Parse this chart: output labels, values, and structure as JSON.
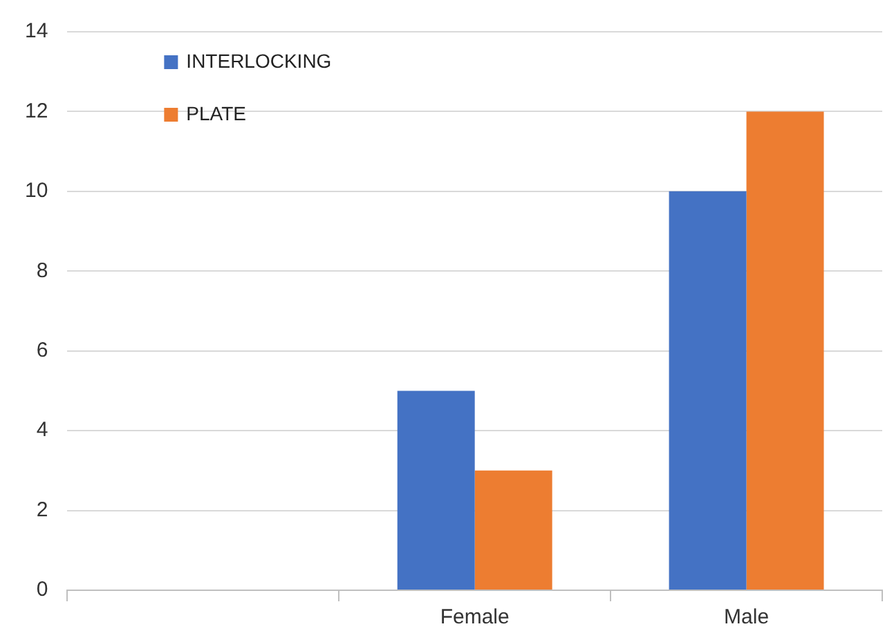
{
  "chart_data": {
    "type": "bar",
    "categories": [
      null,
      "Female",
      "Male"
    ],
    "series": [
      {
        "name": "INTERLOCKING",
        "color": "#4472c4",
        "values": [
          null,
          5,
          10
        ]
      },
      {
        "name": "PLATE",
        "color": "#ed7d31",
        "values": [
          null,
          3,
          12
        ]
      }
    ],
    "ylim": [
      0,
      14
    ],
    "yticks": [
      0,
      2,
      4,
      6,
      8,
      10,
      12,
      14
    ],
    "grid": "y",
    "legend": "top left"
  }
}
